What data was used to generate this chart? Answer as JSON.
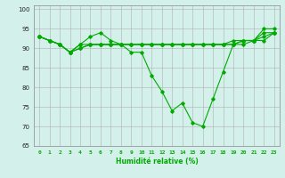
{
  "xlabel": "Humidité relative (%)",
  "background_color": "#d4f0eb",
  "grid_color": "#b0b0b0",
  "line_color": "#00aa00",
  "xlim": [
    -0.5,
    23.5
  ],
  "ylim": [
    65,
    101
  ],
  "yticks": [
    65,
    70,
    75,
    80,
    85,
    90,
    95,
    100
  ],
  "xticks": [
    0,
    1,
    2,
    3,
    4,
    5,
    6,
    7,
    8,
    9,
    10,
    11,
    12,
    13,
    14,
    15,
    16,
    17,
    18,
    19,
    20,
    21,
    22,
    23
  ],
  "series": [
    [
      93,
      92,
      91,
      89,
      91,
      93,
      94,
      92,
      91,
      89,
      89,
      83,
      79,
      74,
      76,
      71,
      70,
      77,
      84,
      91,
      92,
      92,
      95,
      95
    ],
    [
      93,
      92,
      91,
      89,
      91,
      91,
      91,
      91,
      91,
      91,
      91,
      91,
      91,
      91,
      91,
      91,
      91,
      91,
      91,
      91,
      92,
      92,
      93,
      94
    ],
    [
      93,
      92,
      91,
      89,
      90,
      91,
      91,
      91,
      91,
      91,
      91,
      91,
      91,
      91,
      91,
      91,
      91,
      91,
      91,
      91,
      91,
      92,
      92,
      94
    ],
    [
      93,
      92,
      91,
      89,
      90,
      91,
      91,
      91,
      91,
      91,
      91,
      91,
      91,
      91,
      91,
      91,
      91,
      91,
      91,
      92,
      92,
      92,
      94,
      94
    ]
  ]
}
